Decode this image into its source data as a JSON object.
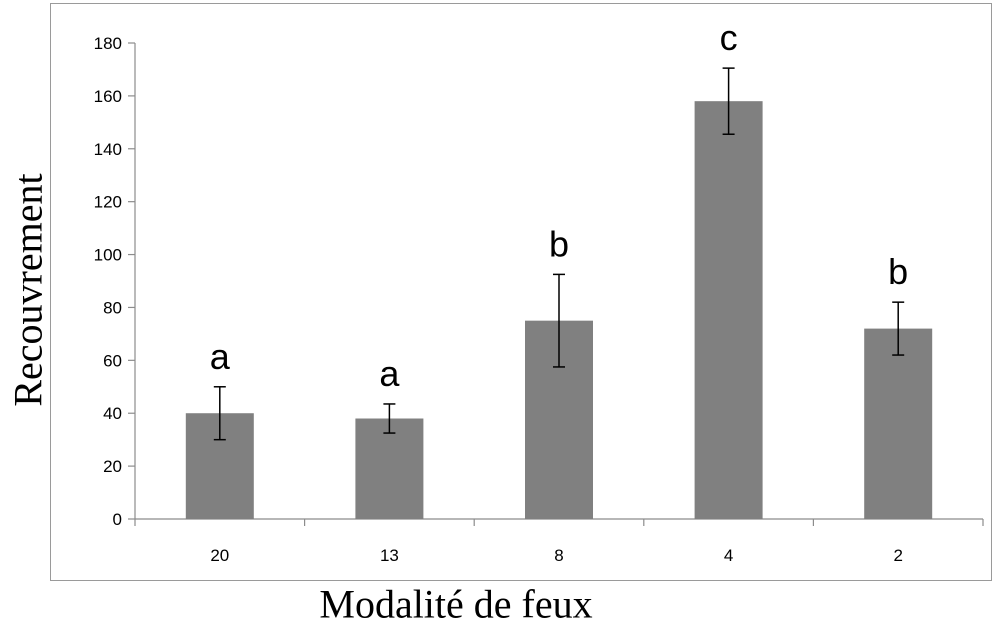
{
  "chart_data": {
    "type": "bar",
    "title": "",
    "xlabel": "Modalité de feux",
    "ylabel": "Recouvrement",
    "categories": [
      "20",
      "13",
      "8",
      "4",
      "2"
    ],
    "series": [
      {
        "values": [
          40,
          38,
          75,
          158,
          72
        ],
        "error": [
          10,
          5.5,
          17.5,
          12.5,
          10
        ],
        "significance": [
          "a",
          "a",
          "b",
          "c",
          "b"
        ],
        "color": "#808080"
      }
    ],
    "ylim": [
      0,
      180
    ],
    "yticks": [
      0,
      20,
      40,
      60,
      80,
      100,
      120,
      140,
      160,
      180
    ],
    "grid": false,
    "legend": "none"
  }
}
